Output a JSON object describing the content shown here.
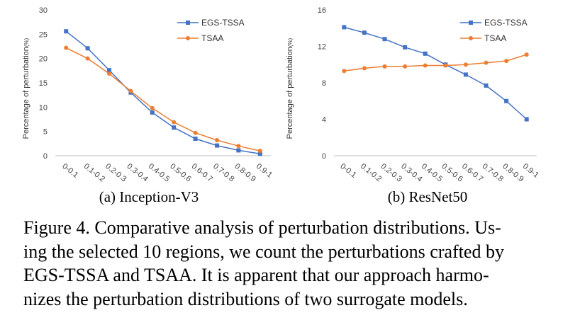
{
  "chart_data": [
    {
      "id": "a",
      "type": "line",
      "title": "(a) Inception-V3",
      "xlabel": "",
      "ylabel": "Percentage of perturbation",
      "ylabel_unit": "(%)",
      "categories": [
        "0-0.1",
        "0.1-0.2",
        "0.2-0.3",
        "0.3-0.4",
        "0.4-0.5",
        "0.5-0.6",
        "0.6-0.7",
        "0.7-0.8",
        "0.8-0.9",
        "0.9-1"
      ],
      "ylim": [
        0,
        30
      ],
      "yticks": [
        0,
        5,
        10,
        15,
        20,
        25,
        30
      ],
      "legend_position": "top-right",
      "series": [
        {
          "name": "EGS-TSSA",
          "color": "#4472C4",
          "marker": "square",
          "values": [
            25.6,
            22.1,
            17.6,
            13.0,
            8.9,
            5.8,
            3.5,
            2.1,
            1.1,
            0.4
          ]
        },
        {
          "name": "TSAA",
          "color": "#ED7D31",
          "marker": "circle",
          "values": [
            22.2,
            20.0,
            16.9,
            13.3,
            9.8,
            6.9,
            4.7,
            3.2,
            2.0,
            1.0
          ]
        }
      ]
    },
    {
      "id": "b",
      "type": "line",
      "title": "(b) ResNet50",
      "xlabel": "",
      "ylabel": "Percentage of perturbation",
      "ylabel_unit": "(%)",
      "categories": [
        "0-0.1",
        "0.1-0.2",
        "0.2-0.3",
        "0.3-0.4",
        "0.4-0.5",
        "0.5-0.6",
        "0.6-0.7",
        "0.7-0.8",
        "0.8-0.9",
        "0.9-1"
      ],
      "ylim": [
        0,
        16
      ],
      "yticks": [
        0,
        4,
        8,
        12,
        16
      ],
      "legend_position": "top-right",
      "series": [
        {
          "name": "EGS-TSSA",
          "color": "#4472C4",
          "marker": "square",
          "values": [
            14.1,
            13.5,
            12.8,
            11.9,
            11.2,
            10.0,
            8.9,
            7.7,
            6.0,
            4.0
          ]
        },
        {
          "name": "TSAA",
          "color": "#ED7D31",
          "marker": "circle",
          "values": [
            9.3,
            9.6,
            9.8,
            9.8,
            9.9,
            9.9,
            10.0,
            10.2,
            10.4,
            11.1
          ]
        }
      ]
    }
  ],
  "caption": {
    "lines": [
      "Figure 4. Comparative analysis of perturbation distributions. Us-",
      "ing the selected 10 regions, we count the perturbations crafted by",
      "EGS-TSSA and TSAA. It is apparent that our approach harmo-",
      "nizes the perturbation distributions of two surrogate models."
    ]
  }
}
